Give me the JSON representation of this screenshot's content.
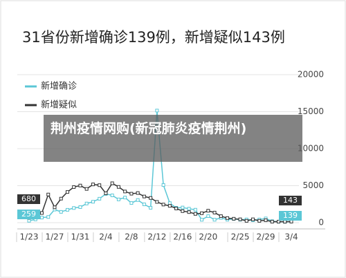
{
  "chart_data": {
    "type": "line",
    "title": "31省份新增确诊139例，新增疑似143例",
    "categories": [
      "1/23",
      null,
      null,
      null,
      "1/27",
      null,
      null,
      null,
      "1/31",
      null,
      null,
      null,
      "2/4",
      null,
      null,
      null,
      "2/8",
      null,
      null,
      null,
      "2/12",
      null,
      null,
      null,
      "2/16",
      null,
      null,
      null,
      "2/20",
      null,
      null,
      null,
      null,
      "2/25",
      null,
      null,
      null,
      "2/29",
      null,
      null,
      null,
      "3/4"
    ],
    "series": [
      {
        "name": "新增确诊",
        "color": "#5bc7d6",
        "values": [
          259,
          444,
          688,
          769,
          1771,
          1459,
          1737,
          1982,
          2102,
          2590,
          2829,
          3235,
          3887,
          3694,
          3143,
          3399,
          2656,
          3062,
          2478,
          2015,
          15152,
          5090,
          2641,
          2009,
          2048,
          1886,
          1749,
          394,
          889,
          397,
          648,
          409,
          508,
          406,
          433,
          327,
          427,
          573,
          202,
          125,
          119,
          139
        ]
      },
      {
        "name": "新增疑似",
        "color": "#333333",
        "values": [
          680,
          1118,
          1309,
          3806,
          2077,
          3248,
          4148,
          4812,
          5019,
          4562,
          5173,
          5072,
          3971,
          5328,
          4833,
          4214,
          3916,
          4008,
          3536,
          3342,
          2807,
          2450,
          2277,
          1918,
          1563,
          1432,
          1185,
          1277,
          1614,
          1361,
          882,
          620,
          530,
          452,
          248,
          452,
          248,
          335,
          132,
          141,
          129,
          143
        ]
      }
    ],
    "ylim": [
      0,
      20000
    ],
    "yticks": [
      0,
      5000,
      10000,
      15000,
      20000
    ],
    "grid": true
  },
  "overlay": {
    "text": "荆州疫情网购(新冠肺炎疫情荆州)"
  }
}
